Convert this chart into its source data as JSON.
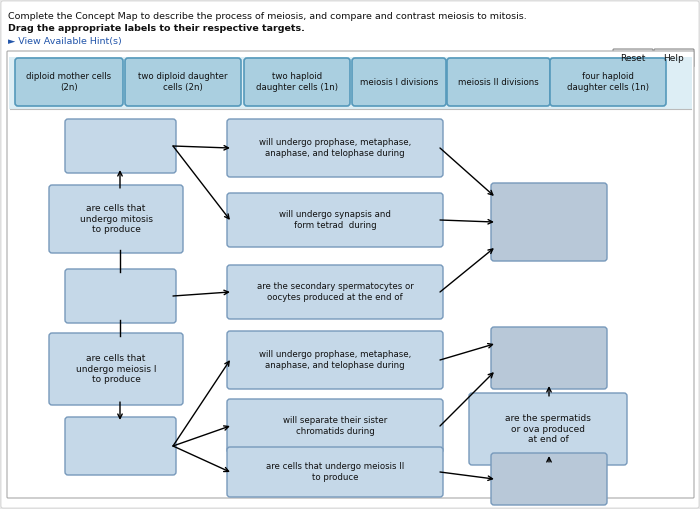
{
  "title": "Complete the Concept Map to describe the process of meiosis, and compare and contrast meiosis to mitosis.",
  "subtitle": "Drag the appropriate labels to their respective targets.",
  "hint": "► View Available Hint(s)",
  "hint_color": "#2255aa",
  "bg_outer": "#e8e8e8",
  "bg_white": "#ffffff",
  "bg_inner_border": "#bbbbbb",
  "label_fill": "#aacfe0",
  "label_border": "#5599bb",
  "box_fill_light": "#c5d8e8",
  "box_fill_grey": "#b8c8d8",
  "box_border": "#7799bb",
  "label_boxes": [
    "diploid mother cells\n(2n)",
    "two diploid daughter\ncells (2n)",
    "two haploid\ndaughter cells (1n)",
    "meiosis I divisions",
    "meiosis II divisions",
    "four haploid\ndaughter cells (1n)"
  ],
  "reset_text": "Reset",
  "help_text": "Help"
}
